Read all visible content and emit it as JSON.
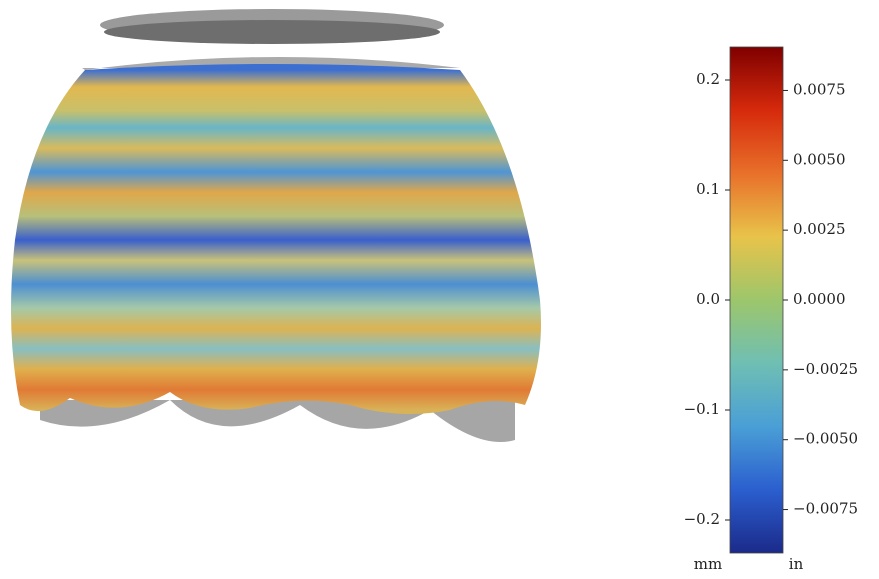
{
  "chart_data": {
    "type": "colorbar",
    "ylim": [
      -0.23,
      0.23
    ],
    "yticks": [
      0.2,
      0.1,
      {
        "value": 0,
        "label": "0.0"
      },
      {
        "value": -0.1,
        "label": "−0.1"
      },
      {
        "value": -0.2,
        "label": "−0.2"
      }
    ],
    "y2lim": [
      -0.009055,
      0.009055
    ],
    "y2ticks": [
      0.0075,
      {
        "value": 0.005,
        "label": "0.0050"
      },
      0.0025,
      {
        "value": 0,
        "label": "0.0000"
      },
      {
        "value": -0.0025,
        "label": "−0.0025"
      },
      {
        "value": -0.005,
        "label": "−0.0050"
      },
      {
        "value": -0.0075,
        "label": "−0.0075"
      }
    ],
    "ylabel": "mm",
    "y2label": "in",
    "colormap": [
      "#1b2a8a",
      "#2b5fcf",
      "#4a9fd6",
      "#6fbfb3",
      "#9dc66b",
      "#e8c34a",
      "#e8702a",
      "#d62a0c",
      "#7f0000"
    ]
  }
}
